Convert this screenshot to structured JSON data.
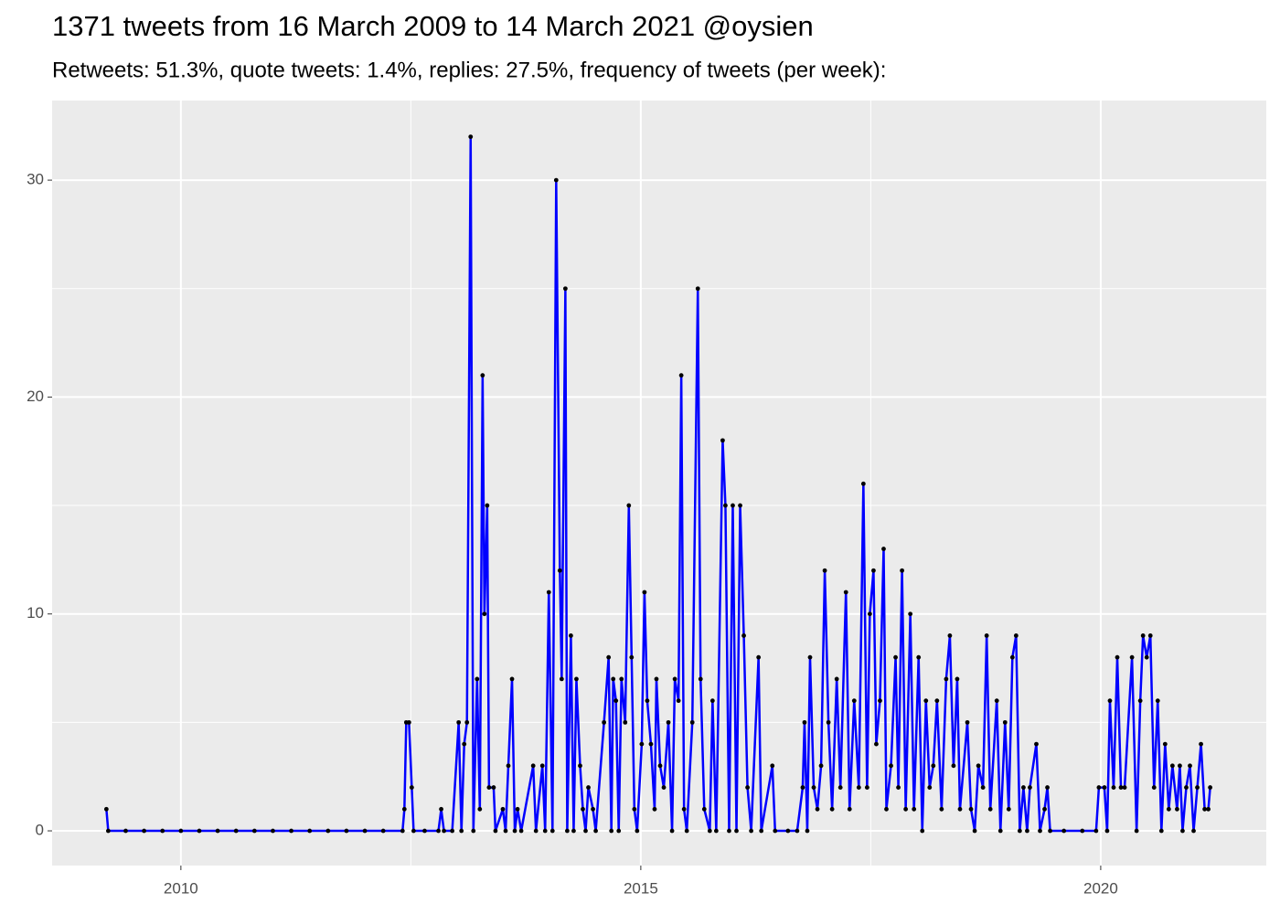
{
  "chart_data": {
    "type": "line",
    "title": "1371 tweets from 16 March 2009 to 14 March 2021 @oysien",
    "subtitle": "Retweets: 51.3%, quote tweets: 1.4%, replies: 27.5%, frequency of tweets (per week):",
    "x": [
      2009.19,
      2009.21,
      2009.4,
      2009.6,
      2009.8,
      2010.0,
      2010.2,
      2010.4,
      2010.6,
      2010.8,
      2011.0,
      2011.2,
      2011.4,
      2011.6,
      2011.8,
      2012.0,
      2012.2,
      2012.41,
      2012.43,
      2012.45,
      2012.48,
      2012.51,
      2012.53,
      2012.65,
      2012.8,
      2012.83,
      2012.86,
      2012.95,
      2013.02,
      2013.05,
      2013.08,
      2013.11,
      2013.15,
      2013.18,
      2013.22,
      2013.25,
      2013.28,
      2013.3,
      2013.33,
      2013.35,
      2013.4,
      2013.42,
      2013.5,
      2013.53,
      2013.56,
      2013.6,
      2013.63,
      2013.66,
      2013.7,
      2013.83,
      2013.86,
      2013.93,
      2013.96,
      2014.0,
      2014.04,
      2014.08,
      2014.12,
      2014.14,
      2014.18,
      2014.2,
      2014.24,
      2014.27,
      2014.3,
      2014.34,
      2014.37,
      2014.4,
      2014.43,
      2014.48,
      2014.51,
      2014.6,
      2014.65,
      2014.68,
      2014.7,
      2014.73,
      2014.76,
      2014.79,
      2014.83,
      2014.87,
      2014.9,
      2014.93,
      2014.96,
      2015.01,
      2015.04,
      2015.07,
      2015.11,
      2015.15,
      2015.17,
      2015.21,
      2015.25,
      2015.3,
      2015.34,
      2015.37,
      2015.41,
      2015.44,
      2015.47,
      2015.5,
      2015.56,
      2015.62,
      2015.65,
      2015.69,
      2015.75,
      2015.78,
      2015.82,
      2015.89,
      2015.92,
      2015.96,
      2016.0,
      2016.04,
      2016.08,
      2016.12,
      2016.16,
      2016.2,
      2016.28,
      2016.31,
      2016.43,
      2016.46,
      2016.6,
      2016.7,
      2016.76,
      2016.78,
      2016.81,
      2016.84,
      2016.88,
      2016.92,
      2016.96,
      2017.0,
      2017.04,
      2017.08,
      2017.13,
      2017.17,
      2017.23,
      2017.27,
      2017.32,
      2017.37,
      2017.42,
      2017.46,
      2017.49,
      2017.53,
      2017.56,
      2017.6,
      2017.64,
      2017.67,
      2017.72,
      2017.77,
      2017.8,
      2017.84,
      2017.88,
      2017.93,
      2017.97,
      2018.02,
      2018.06,
      2018.1,
      2018.14,
      2018.18,
      2018.22,
      2018.27,
      2018.32,
      2018.36,
      2018.4,
      2018.44,
      2018.47,
      2018.55,
      2018.59,
      2018.63,
      2018.67,
      2018.72,
      2018.76,
      2018.8,
      2018.87,
      2018.91,
      2018.96,
      2019.0,
      2019.04,
      2019.08,
      2019.12,
      2019.16,
      2019.2,
      2019.23,
      2019.3,
      2019.34,
      2019.39,
      2019.42,
      2019.45,
      2019.6,
      2019.8,
      2019.95,
      2019.98,
      2020.04,
      2020.07,
      2020.1,
      2020.14,
      2020.18,
      2020.22,
      2020.26,
      2020.34,
      2020.39,
      2020.43,
      2020.46,
      2020.5,
      2020.54,
      2020.58,
      2020.62,
      2020.66,
      2020.7,
      2020.74,
      2020.78,
      2020.83,
      2020.86,
      2020.89,
      2020.93,
      2020.97,
      2021.01,
      2021.05,
      2021.09,
      2021.13,
      2021.17,
      2021.19
    ],
    "values": [
      1,
      0,
      0,
      0,
      0,
      0,
      0,
      0,
      0,
      0,
      0,
      0,
      0,
      0,
      0,
      0,
      0,
      0,
      1,
      5,
      5,
      2,
      0,
      0,
      0,
      1,
      0,
      0,
      5,
      0,
      4,
      5,
      32,
      0,
      7,
      1,
      21,
      10,
      15,
      2,
      2,
      0,
      1,
      0,
      3,
      7,
      0,
      1,
      0,
      3,
      0,
      3,
      0,
      11,
      0,
      30,
      12,
      7,
      25,
      0,
      9,
      0,
      7,
      3,
      1,
      0,
      2,
      1,
      0,
      5,
      8,
      0,
      7,
      6,
      0,
      7,
      5,
      15,
      8,
      1,
      0,
      4,
      11,
      6,
      4,
      1,
      7,
      3,
      2,
      5,
      0,
      7,
      6,
      21,
      1,
      0,
      5,
      25,
      7,
      1,
      0,
      6,
      0,
      18,
      15,
      0,
      15,
      0,
      15,
      9,
      2,
      0,
      8,
      0,
      3,
      0,
      0,
      0,
      2,
      5,
      0,
      8,
      2,
      1,
      3,
      12,
      5,
      1,
      7,
      2,
      11,
      1,
      6,
      2,
      16,
      2,
      10,
      12,
      4,
      6,
      13,
      1,
      3,
      8,
      2,
      12,
      1,
      10,
      1,
      8,
      0,
      6,
      2,
      3,
      6,
      1,
      7,
      9,
      3,
      7,
      1,
      5,
      1,
      0,
      3,
      2,
      9,
      1,
      6,
      0,
      5,
      1,
      8,
      9,
      0,
      2,
      0,
      2,
      4,
      0,
      1,
      2,
      0,
      0,
      0,
      0,
      2,
      2,
      0,
      6,
      2,
      8,
      2,
      2,
      8,
      0,
      6,
      9,
      8,
      9,
      2,
      6,
      0,
      4,
      1,
      3,
      1,
      3,
      0,
      2,
      3,
      0,
      2,
      4,
      1,
      1,
      2
    ],
    "color": "blue",
    "point_color": "black",
    "xlim": [
      2008.6,
      2021.8
    ],
    "xticks": [
      2010,
      2015,
      2020
    ],
    "x_minor_ticks": [
      2012.5,
      2017.5
    ],
    "ylim": [
      -1.6,
      33.67
    ],
    "yticks": [
      0,
      10,
      20,
      30
    ],
    "y_minor_ticks": [
      5,
      15,
      25
    ],
    "grid": true
  }
}
